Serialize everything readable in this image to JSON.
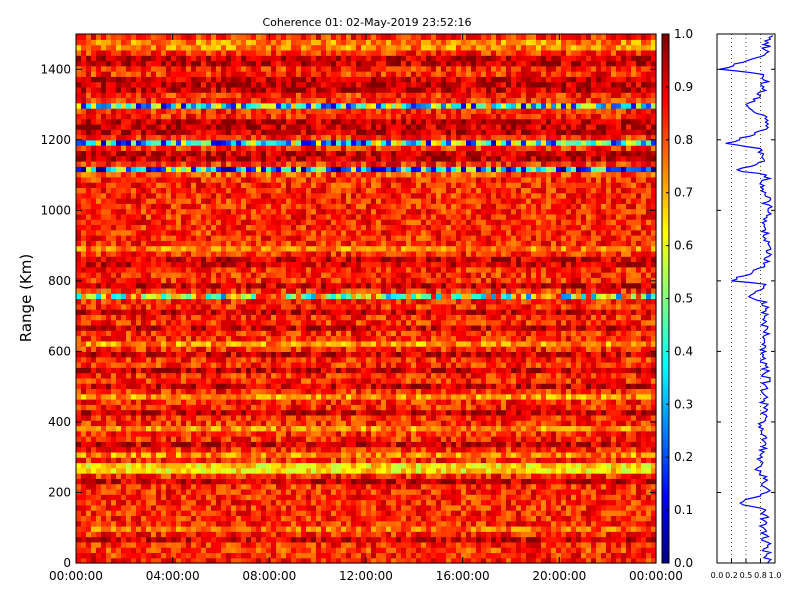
{
  "chart_data": [
    {
      "type": "heatmap",
      "title": "Coherence 01: 02-May-2019 23:52:16",
      "ylabel": "Range (Km)",
      "xlabel": "",
      "x_tick_labels": [
        "00:00:00",
        "04:00:00",
        "08:00:00",
        "12:00:00",
        "16:00:00",
        "20:00:00",
        "00:00:00"
      ],
      "x_range_hours": [
        0,
        24
      ],
      "y_ticks": [
        0,
        200,
        400,
        600,
        800,
        1000,
        1200,
        1400
      ],
      "y_range": [
        0,
        1500
      ],
      "colormap": "jet",
      "color_range": [
        0,
        1
      ],
      "colorbar_ticks": [
        "0.0",
        "0.1",
        "0.2",
        "0.3",
        "0.4",
        "0.5",
        "0.6",
        "0.7",
        "0.8",
        "0.9",
        "1.0"
      ],
      "range_bin_km": 15,
      "band_coherence": [
        {
          "range_km": [
            0,
            20
          ],
          "coherence": 0.85
        },
        {
          "range_km": [
            30,
            40
          ],
          "coherence": 0.82
        },
        {
          "range_km": [
            60,
            70
          ],
          "coherence": 0.92
        },
        {
          "range_km": [
            90,
            110
          ],
          "coherence": 0.78
        },
        {
          "range_km": [
            130,
            140
          ],
          "coherence": 0.92
        },
        {
          "range_km": [
            190,
            200
          ],
          "coherence": 0.72
        },
        {
          "range_km": [
            225,
            240
          ],
          "coherence": 0.93
        },
        {
          "range_km": [
            255,
            285
          ],
          "coherence": 0.65
        },
        {
          "range_km": [
            300,
            320
          ],
          "coherence": 0.74
        },
        {
          "range_km": [
            335,
            345
          ],
          "coherence": 0.92
        },
        {
          "range_km": [
            375,
            390
          ],
          "coherence": 0.74
        },
        {
          "range_km": [
            420,
            430
          ],
          "coherence": 0.93
        },
        {
          "range_km": [
            465,
            480
          ],
          "coherence": 0.73
        },
        {
          "range_km": [
            500,
            510
          ],
          "coherence": 0.92
        },
        {
          "range_km": [
            535,
            550
          ],
          "coherence": 0.93
        },
        {
          "range_km": [
            590,
            600
          ],
          "coherence": 0.92
        },
        {
          "range_km": [
            620,
            630
          ],
          "coherence": 0.73
        },
        {
          "range_km": [
            660,
            680
          ],
          "coherence": 0.92
        },
        {
          "range_km": [
            700,
            715
          ],
          "coherence": 0.93
        },
        {
          "range_km": [
            750,
            765
          ],
          "coherence": 0.55
        },
        {
          "range_km": [
            780,
            800
          ],
          "coherence": 0.93
        },
        {
          "range_km": [
            840,
            870
          ],
          "coherence": 0.92
        },
        {
          "range_km": [
            890,
            900
          ],
          "coherence": 0.75
        },
        {
          "range_km": [
            970,
            980
          ],
          "coherence": 0.74
        },
        {
          "range_km": [
            1060,
            1070
          ],
          "coherence": 0.74
        },
        {
          "range_km": [
            1095,
            1105
          ],
          "coherence": 0.8
        },
        {
          "range_km": [
            1110,
            1125
          ],
          "coherence": 0.28
        },
        {
          "range_km": [
            1140,
            1170
          ],
          "coherence": 0.93
        },
        {
          "range_km": [
            1180,
            1200
          ],
          "coherence": 0.38
        },
        {
          "range_km": [
            1215,
            1260
          ],
          "coherence": 0.93
        },
        {
          "range_km": [
            1290,
            1310
          ],
          "coherence": 0.42
        },
        {
          "range_km": [
            1330,
            1380
          ],
          "coherence": 0.93
        },
        {
          "range_km": [
            1410,
            1440
          ],
          "coherence": 0.93
        },
        {
          "range_km": [
            1460,
            1480
          ],
          "coherence": 0.75
        }
      ],
      "default_coherence": 0.84
    },
    {
      "type": "line",
      "title": "",
      "xlabel": "",
      "ylabel": "",
      "x_tick_labels": [
        "0.0",
        "0.2",
        "0.5",
        "0.8",
        "1.0"
      ],
      "x_ticks": [
        0.0,
        0.25,
        0.5,
        0.75,
        1.0
      ],
      "x_range": [
        0,
        1
      ],
      "y_range": [
        0,
        1500
      ],
      "y_ticks": [
        0,
        200,
        400,
        600,
        800,
        1000,
        1200,
        1400
      ],
      "grid": "vertical-dotted",
      "line_color": "#0000ff",
      "profile": {
        "range_km": [
          0,
          60,
          100,
          150,
          170,
          200,
          230,
          270,
          300,
          340,
          390,
          420,
          460,
          500,
          540,
          580,
          620,
          660,
          700,
          740,
          755,
          790,
          800,
          840,
          880,
          920,
          960,
          1000,
          1040,
          1060,
          1100,
          1112,
          1140,
          1175,
          1190,
          1230,
          1260,
          1300,
          1340,
          1385,
          1400,
          1440,
          1490
        ],
        "coherence": [
          0.87,
          0.85,
          0.8,
          0.84,
          0.4,
          0.85,
          0.82,
          0.7,
          0.78,
          0.84,
          0.76,
          0.84,
          0.82,
          0.85,
          0.84,
          0.83,
          0.78,
          0.84,
          0.82,
          0.85,
          0.55,
          0.84,
          0.25,
          0.82,
          0.86,
          0.84,
          0.82,
          0.88,
          0.84,
          0.8,
          0.85,
          0.35,
          0.82,
          0.75,
          0.15,
          0.85,
          0.83,
          0.5,
          0.84,
          0.8,
          0.05,
          0.82,
          0.9
        ]
      }
    }
  ]
}
